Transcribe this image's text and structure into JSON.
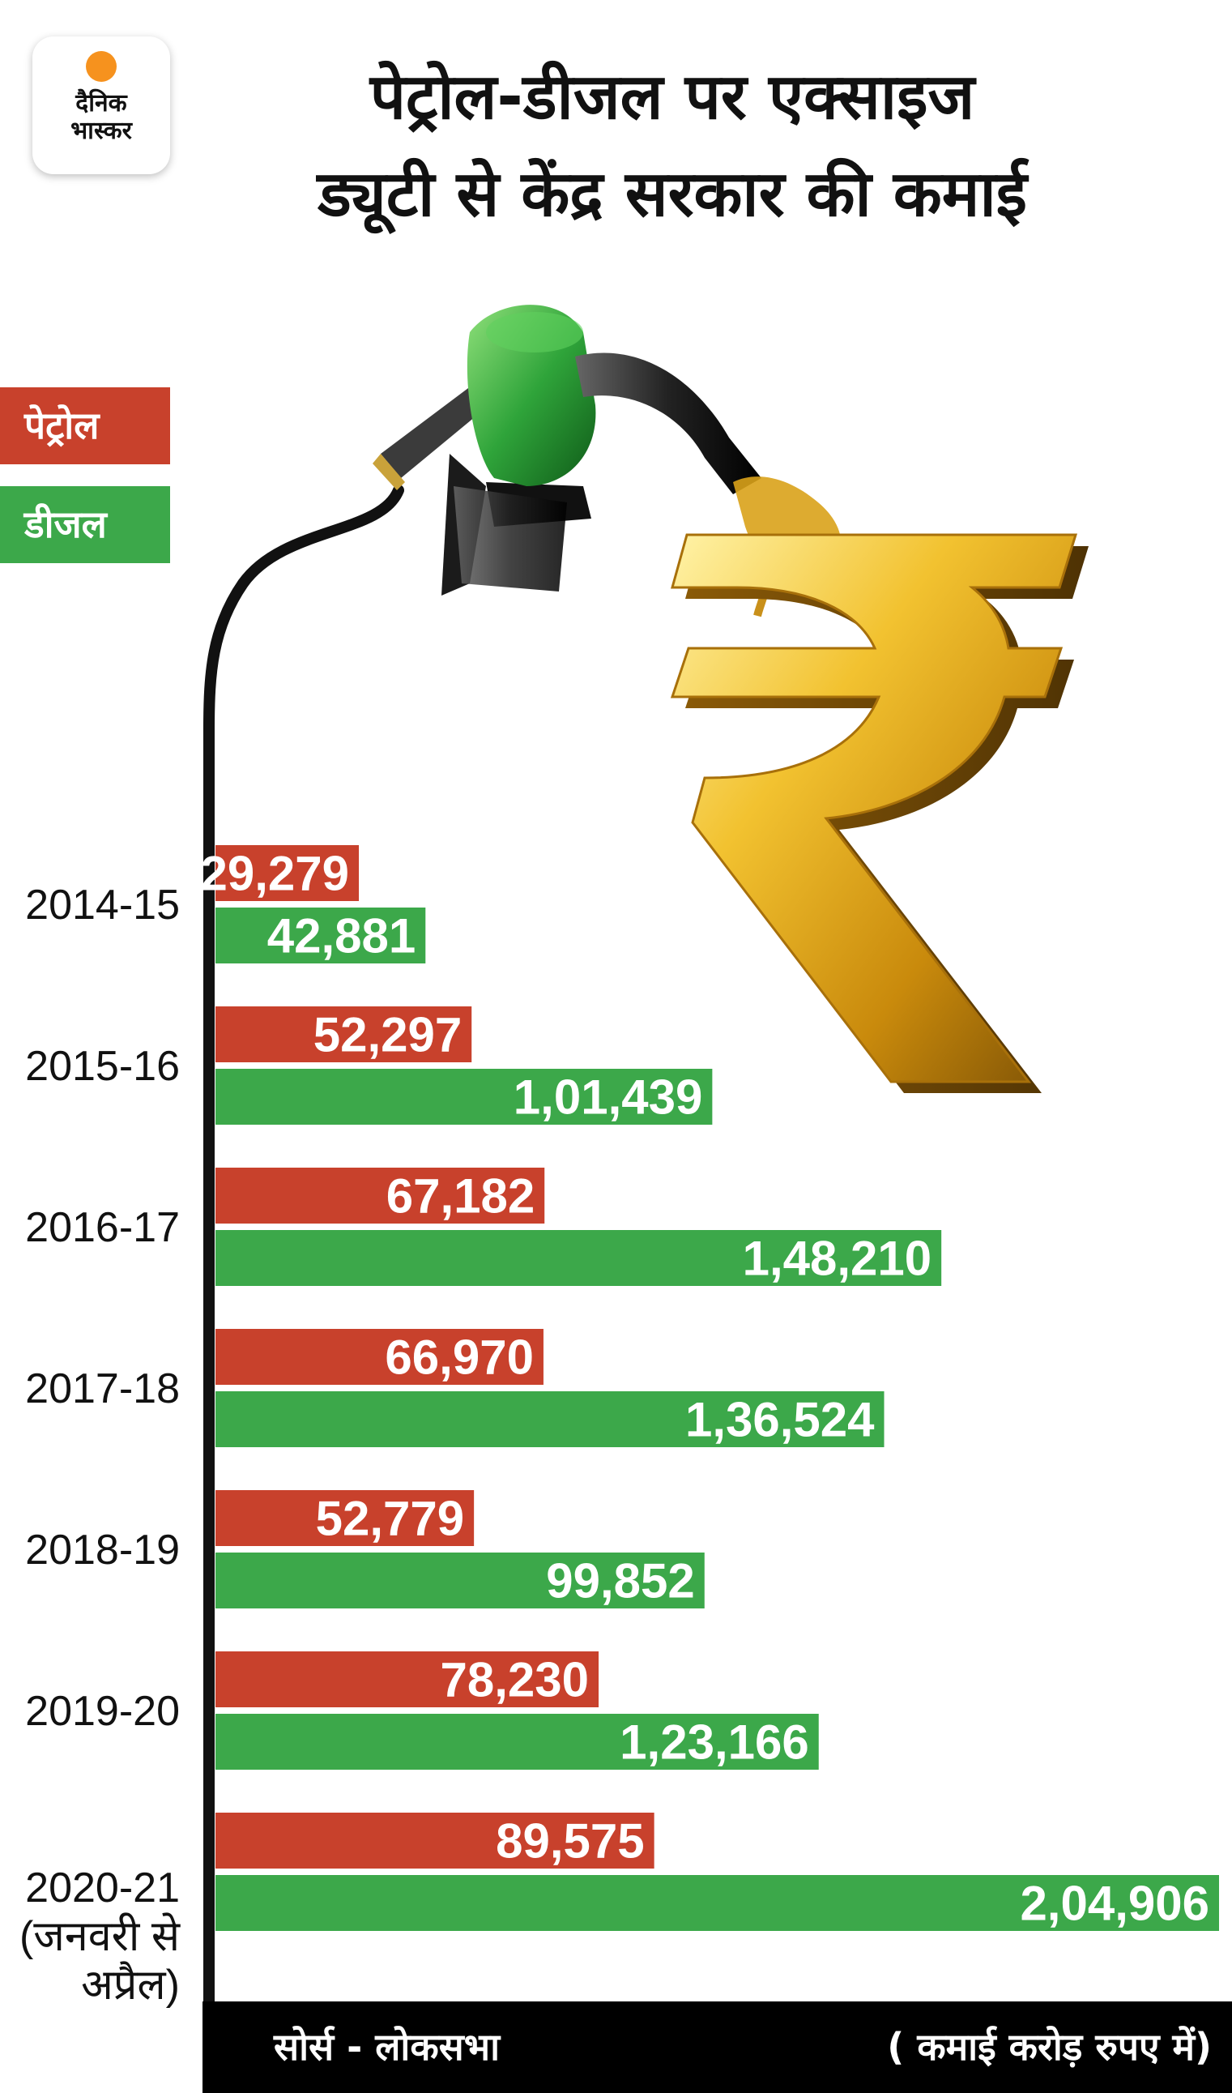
{
  "brand": {
    "logo_line1": "दैनिक",
    "logo_line2": "भास्कर"
  },
  "title_line1": "पेट्रोल-डीजल पर एक्साइज",
  "title_line2": "ड्यूटी से केंद्र सरकार की कमाई",
  "legend": [
    {
      "label": "पेट्रोल",
      "color": "#c8412c"
    },
    {
      "label": "डीजल",
      "color": "#3ca84a"
    }
  ],
  "footer": {
    "source": "सोर्स - लोकसभा",
    "unit": "( कमाई करोड़ रुपए में)"
  },
  "chart_data": {
    "type": "bar",
    "orientation": "horizontal",
    "title": "पेट्रोल-डीजल पर एक्साइज ड्यूटी से केंद्र सरकार की कमाई",
    "categories": [
      [
        "2014-15"
      ],
      [
        "2015-16"
      ],
      [
        "2016-17"
      ],
      [
        "2017-18"
      ],
      [
        "2018-19"
      ],
      [
        "2019-20"
      ],
      [
        "2020-21",
        "(जनवरी से",
        "अप्रैल)"
      ]
    ],
    "series": [
      {
        "name": "पेट्रोल",
        "color": "#c8412c",
        "values": [
          29279,
          52297,
          67182,
          66970,
          52779,
          78230,
          89575
        ],
        "labels": [
          "29,279",
          "52,297",
          "67,182",
          "66,970",
          "52,779",
          "78,230",
          "89,575"
        ]
      },
      {
        "name": "डीजल",
        "color": "#3ca84a",
        "values": [
          42881,
          101439,
          148210,
          136524,
          99852,
          123166,
          204906
        ],
        "labels": [
          "42,881",
          "1,01,439",
          "1,48,210",
          "1,36,524",
          "99,852",
          "1,23,166",
          "2,04,906"
        ]
      }
    ],
    "unit": "( कमाई करोड़ रुपए में)",
    "source": "सोर्स - लोकसभा",
    "legend_position": "top-left",
    "grid": false
  },
  "illustration": {
    "objects": [
      "fuel-nozzle",
      "rupee-symbol",
      "fuel-hose"
    ]
  }
}
